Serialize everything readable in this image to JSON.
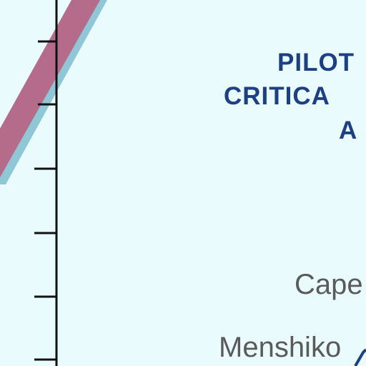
{
  "colors": {
    "background": "#e9fbfd",
    "title_text": "#1d3f84",
    "place_text": "#5a5a5a",
    "band_fill": "#b56b8a",
    "band_edge": "#8fc7d6",
    "axis_line": "#111111",
    "coast_line": "#1d3f84"
  },
  "labels": {
    "title_line_1": "PILOT",
    "title_line_2": "CRITICA",
    "title_line_3": "A",
    "place_1": "Cape",
    "place_2": "Menshiko"
  },
  "icons": {
    "band": "diagonal-band",
    "axis": "vertical-graticule-axis"
  }
}
